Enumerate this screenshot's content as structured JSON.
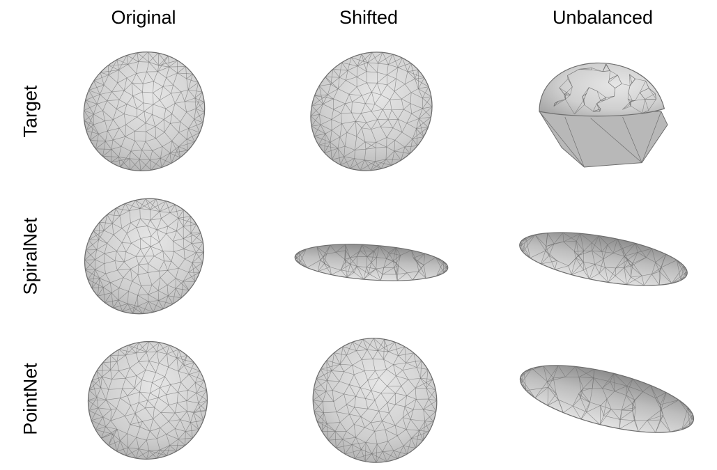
{
  "columns": [
    "Original",
    "Shifted",
    "Unbalanced"
  ],
  "rows": [
    "Target",
    "SpiralNet",
    "PointNet"
  ],
  "cells": [
    {
      "row": "Target",
      "column": "Original",
      "shape": "faceted-ellipsoid"
    },
    {
      "row": "Target",
      "column": "Shifted",
      "shape": "faceted-ellipsoid"
    },
    {
      "row": "Target",
      "column": "Unbalanced",
      "shape": "truncated-dome"
    },
    {
      "row": "SpiralNet",
      "column": "Original",
      "shape": "faceted-ellipsoid"
    },
    {
      "row": "SpiralNet",
      "column": "Shifted",
      "shape": "flattened-disc"
    },
    {
      "row": "SpiralNet",
      "column": "Unbalanced",
      "shape": "flattened-disc"
    },
    {
      "row": "PointNet",
      "column": "Original",
      "shape": "faceted-ellipsoid"
    },
    {
      "row": "PointNet",
      "column": "Shifted",
      "shape": "faceted-ellipsoid"
    },
    {
      "row": "PointNet",
      "column": "Unbalanced",
      "shape": "flattened-disc"
    }
  ],
  "colors": {
    "mesh_fill": "#d4d4d4",
    "mesh_edge": "#6e6e6e",
    "mesh_shadow": "#9a9a9a",
    "text": "#000000"
  }
}
